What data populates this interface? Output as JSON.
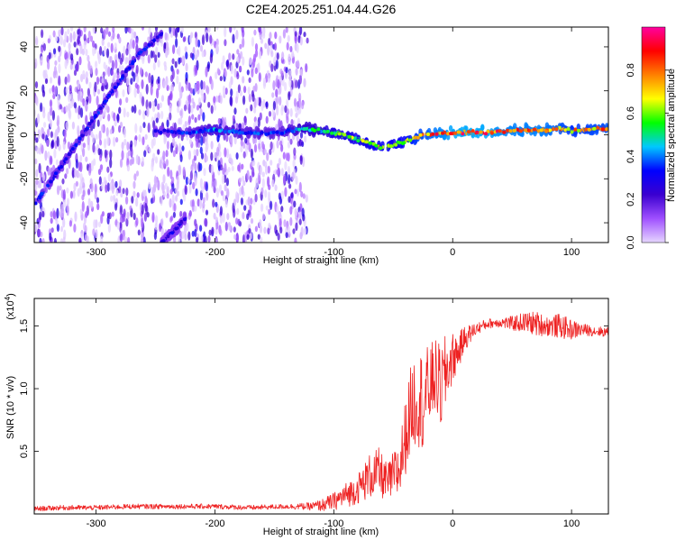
{
  "chart_data": [
    {
      "type": "heatmap",
      "title": "C2E4.2025.251.04.44.G26",
      "xlabel": "Height of straight line (km)",
      "ylabel": "Frequency (Hz)",
      "xlim": [
        -352,
        131
      ],
      "ylim": [
        -49,
        49
      ],
      "x_ticks": [
        -300,
        -200,
        -100,
        0,
        100
      ],
      "x_tick_labels": [
        "-300",
        "-200",
        "-100",
        "0",
        "100"
      ],
      "y_ticks": [
        -40,
        -20,
        0,
        20,
        40
      ],
      "y_tick_labels": [
        "-40",
        "-20",
        "0",
        "20",
        "40"
      ],
      "colorbar": {
        "label": "Normalized spectral amplitude",
        "range": [
          0,
          1
        ],
        "ticks": [
          0.0,
          0.2,
          0.4,
          0.6,
          0.8
        ],
        "tick_labels": [
          "0.0",
          "0.2",
          "0.4",
          "0.6",
          "0.8"
        ],
        "colors": [
          "#e6d6ff",
          "#a050ff",
          "#3a00d0",
          "#0000ff",
          "#00c8ff",
          "#00ff00",
          "#ffff00",
          "#ff8000",
          "#ff0000",
          "#ff00a0"
        ]
      },
      "noise_region_x": [
        -352,
        -122
      ],
      "ridges": [
        {
          "name": "descending-ridge",
          "x": [
            -352,
            -320,
            -290,
            -265,
            -245
          ],
          "y": [
            -32,
            -7,
            17,
            36,
            46
          ],
          "amplitude": 0.35
        },
        {
          "name": "second-ridge",
          "x": [
            -245,
            -235,
            -225
          ],
          "y": [
            -49,
            -44,
            -38
          ],
          "amplitude": 0.3
        },
        {
          "name": "main-ridge",
          "x": [
            -250,
            -230,
            -200,
            -170,
            -145,
            -125,
            -100,
            -80,
            -60,
            -45,
            -25,
            0,
            25,
            50,
            75,
            90,
            100,
            131
          ],
          "y": [
            2,
            1,
            2,
            1,
            1,
            3,
            1,
            -2,
            -6,
            -4,
            0,
            1,
            1,
            2,
            2,
            3,
            2,
            3
          ],
          "amplitude": [
            0.3,
            0.35,
            0.45,
            0.4,
            0.4,
            0.5,
            0.6,
            0.65,
            0.7,
            0.7,
            0.85,
            0.95,
            0.95,
            0.9,
            0.9,
            0.85,
            0.8,
            0.85
          ]
        }
      ]
    },
    {
      "type": "line",
      "xlabel": "Height of straight line (km)",
      "ylabel": "SNR (10 * v/v)",
      "y_multiplier": "(x10",
      "y_multiplier_exp": "4",
      "y_multiplier_close": ")",
      "xlim": [
        -352,
        131
      ],
      "ylim": [
        0,
        1.72
      ],
      "x_ticks": [
        -300,
        -200,
        -100,
        0,
        100
      ],
      "x_tick_labels": [
        "-300",
        "-200",
        "-100",
        "0",
        "100"
      ],
      "y_ticks": [
        0.5,
        1.0,
        1.5
      ],
      "y_tick_labels": [
        "0.5",
        "1.0",
        "1.5"
      ],
      "series": [
        {
          "name": "SNR",
          "color": "#ee2222",
          "x": [
            -352,
            -330,
            -300,
            -270,
            -240,
            -200,
            -170,
            -140,
            -120,
            -110,
            -100,
            -90,
            -80,
            -70,
            -62,
            -55,
            -50,
            -45,
            -40,
            -35,
            -30,
            -25,
            -20,
            -15,
            -10,
            -5,
            0,
            5,
            10,
            20,
            30,
            40,
            50,
            60,
            70,
            80,
            90,
            100,
            110,
            120,
            131
          ],
          "y": [
            0.04,
            0.05,
            0.05,
            0.06,
            0.06,
            0.06,
            0.05,
            0.06,
            0.06,
            0.07,
            0.1,
            0.15,
            0.2,
            0.3,
            0.33,
            0.25,
            0.3,
            0.35,
            0.6,
            0.85,
            0.95,
            0.9,
            1.0,
            1.1,
            1.0,
            1.15,
            1.25,
            1.3,
            1.4,
            1.48,
            1.52,
            1.53,
            1.52,
            1.53,
            1.52,
            1.5,
            1.5,
            1.47,
            1.47,
            1.46,
            1.45
          ],
          "noise": [
            0.02,
            0.02,
            0.02,
            0.02,
            0.02,
            0.02,
            0.02,
            0.02,
            0.03,
            0.05,
            0.07,
            0.1,
            0.12,
            0.18,
            0.2,
            0.15,
            0.2,
            0.25,
            0.3,
            0.35,
            0.4,
            0.4,
            0.35,
            0.3,
            0.35,
            0.3,
            0.2,
            0.15,
            0.1,
            0.05,
            0.04,
            0.04,
            0.06,
            0.08,
            0.1,
            0.08,
            0.1,
            0.08,
            0.05,
            0.04,
            0.04
          ]
        }
      ]
    }
  ]
}
